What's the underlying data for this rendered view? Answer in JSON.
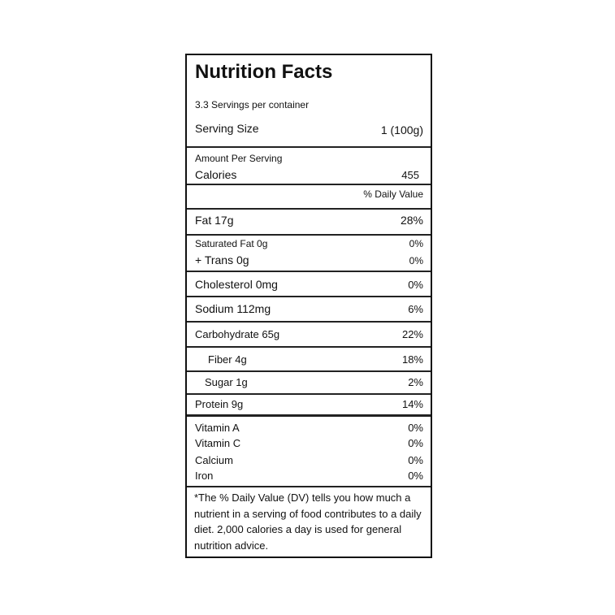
{
  "title": "Nutrition Facts",
  "servings_per_container": "3.3 Servings per container",
  "serving_size": {
    "label": "Serving Size",
    "value": "1 (100g)"
  },
  "amount_per_serving": "Amount Per Serving",
  "calories": {
    "label": "Calories",
    "value": "455"
  },
  "daily_value_header": "% Daily Value",
  "nutrients": [
    {
      "label": "Fat 17g",
      "dv": "28%"
    },
    {
      "label": "Saturated Fat 0g",
      "dv": "0%"
    },
    {
      "label": "+ Trans 0g",
      "dv": "0%"
    },
    {
      "label": "Cholesterol 0mg",
      "dv": "0%"
    },
    {
      "label": "Sodium 112mg",
      "dv": "6%"
    },
    {
      "label": "Carbohydrate 65g",
      "dv": "22%"
    },
    {
      "label": "Fiber 4g",
      "dv": "18%"
    },
    {
      "label": "Sugar 1g",
      "dv": "2%"
    },
    {
      "label": "Protein 9g",
      "dv": "14%"
    }
  ],
  "vitamins": [
    {
      "label": "Vitamin A",
      "dv": "0%"
    },
    {
      "label": "Vitamin C",
      "dv": "0%"
    },
    {
      "label": "Calcium",
      "dv": "0%"
    },
    {
      "label": "Iron",
      "dv": "0%"
    }
  ],
  "footnote": "*The % Daily Value (DV) tells you how much a nutrient in a serving of food contributes to a daily diet. 2,000 calories a day is used for general nutrition advice."
}
